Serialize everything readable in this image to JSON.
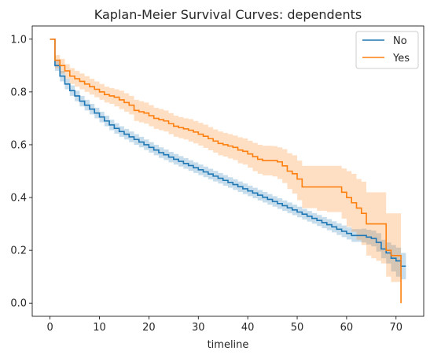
{
  "chart_data": {
    "type": "line",
    "step": true,
    "title": "Kaplan-Meier Survival Curves: dependents",
    "xlabel": "timeline",
    "ylabel": "",
    "xlim": [
      -3.6,
      75.6
    ],
    "ylim": [
      -0.05,
      1.05
    ],
    "xticks": [
      0,
      10,
      20,
      30,
      40,
      50,
      60,
      70
    ],
    "yticks": [
      0.0,
      0.2,
      0.4,
      0.6,
      0.8,
      1.0
    ],
    "xtick_labels": [
      "0",
      "10",
      "20",
      "30",
      "40",
      "50",
      "60",
      "70"
    ],
    "ytick_labels": [
      "0.0",
      "0.2",
      "0.4",
      "0.6",
      "0.8",
      "1.0"
    ],
    "legend_position": "top-right",
    "grid": false,
    "series": [
      {
        "name": "No",
        "color": "#1f77b4",
        "x": [
          0,
          1,
          2,
          3,
          4,
          5,
          6,
          7,
          8,
          9,
          10,
          11,
          12,
          13,
          14,
          15,
          16,
          17,
          18,
          19,
          20,
          21,
          22,
          23,
          24,
          25,
          26,
          27,
          28,
          29,
          30,
          31,
          32,
          33,
          34,
          35,
          36,
          37,
          38,
          39,
          40,
          41,
          42,
          43,
          44,
          45,
          46,
          47,
          48,
          49,
          50,
          51,
          52,
          53,
          54,
          55,
          56,
          57,
          58,
          59,
          60,
          61,
          62,
          63,
          64,
          65,
          66,
          67,
          68,
          69,
          70,
          71,
          72
        ],
        "y": [
          1.0,
          0.9,
          0.86,
          0.83,
          0.805,
          0.785,
          0.765,
          0.75,
          0.735,
          0.72,
          0.705,
          0.69,
          0.675,
          0.662,
          0.65,
          0.64,
          0.63,
          0.62,
          0.61,
          0.6,
          0.59,
          0.58,
          0.57,
          0.562,
          0.553,
          0.545,
          0.537,
          0.529,
          0.521,
          0.513,
          0.505,
          0.497,
          0.489,
          0.481,
          0.473,
          0.465,
          0.457,
          0.449,
          0.441,
          0.433,
          0.425,
          0.417,
          0.409,
          0.401,
          0.393,
          0.385,
          0.377,
          0.369,
          0.361,
          0.353,
          0.345,
          0.337,
          0.329,
          0.321,
          0.313,
          0.305,
          0.297,
          0.289,
          0.28,
          0.272,
          0.264,
          0.256,
          0.256,
          0.256,
          0.25,
          0.245,
          0.23,
          0.205,
          0.19,
          0.17,
          0.16,
          0.14,
          0.14
        ],
        "ci_lower": [
          1.0,
          0.88,
          0.84,
          0.81,
          0.785,
          0.765,
          0.745,
          0.73,
          0.715,
          0.7,
          0.685,
          0.67,
          0.655,
          0.642,
          0.63,
          0.62,
          0.61,
          0.6,
          0.59,
          0.58,
          0.57,
          0.56,
          0.55,
          0.542,
          0.533,
          0.525,
          0.517,
          0.509,
          0.501,
          0.493,
          0.485,
          0.477,
          0.469,
          0.461,
          0.453,
          0.445,
          0.437,
          0.429,
          0.421,
          0.413,
          0.405,
          0.397,
          0.389,
          0.381,
          0.373,
          0.365,
          0.357,
          0.349,
          0.341,
          0.333,
          0.325,
          0.317,
          0.309,
          0.301,
          0.292,
          0.284,
          0.276,
          0.268,
          0.258,
          0.25,
          0.241,
          0.232,
          0.232,
          0.23,
          0.222,
          0.215,
          0.195,
          0.17,
          0.15,
          0.12,
          0.1,
          0.09,
          0.09
        ],
        "ci_upper": [
          1.0,
          0.92,
          0.88,
          0.85,
          0.825,
          0.805,
          0.785,
          0.77,
          0.755,
          0.74,
          0.725,
          0.71,
          0.695,
          0.682,
          0.67,
          0.66,
          0.65,
          0.64,
          0.63,
          0.62,
          0.61,
          0.6,
          0.59,
          0.582,
          0.573,
          0.565,
          0.557,
          0.549,
          0.541,
          0.533,
          0.525,
          0.517,
          0.509,
          0.501,
          0.493,
          0.485,
          0.477,
          0.469,
          0.461,
          0.453,
          0.445,
          0.437,
          0.429,
          0.421,
          0.413,
          0.405,
          0.397,
          0.389,
          0.381,
          0.373,
          0.365,
          0.357,
          0.349,
          0.341,
          0.334,
          0.326,
          0.318,
          0.31,
          0.302,
          0.294,
          0.287,
          0.28,
          0.28,
          0.282,
          0.278,
          0.275,
          0.265,
          0.24,
          0.23,
          0.22,
          0.21,
          0.19,
          0.19
        ]
      },
      {
        "name": "Yes",
        "color": "#ff7f0e",
        "x": [
          0,
          1,
          2,
          3,
          4,
          5,
          6,
          7,
          8,
          9,
          10,
          11,
          12,
          13,
          14,
          15,
          16,
          17,
          18,
          19,
          20,
          21,
          22,
          23,
          24,
          25,
          26,
          27,
          28,
          29,
          30,
          31,
          32,
          33,
          34,
          35,
          36,
          37,
          38,
          39,
          40,
          41,
          42,
          43,
          44,
          45,
          46,
          47,
          48,
          49,
          50,
          51,
          52,
          53,
          54,
          55,
          56,
          57,
          58,
          59,
          60,
          61,
          62,
          63,
          64,
          65,
          66,
          67,
          68,
          69,
          70,
          71
        ],
        "y": [
          1.0,
          0.92,
          0.9,
          0.88,
          0.86,
          0.85,
          0.84,
          0.83,
          0.82,
          0.81,
          0.8,
          0.79,
          0.785,
          0.78,
          0.77,
          0.76,
          0.75,
          0.73,
          0.725,
          0.72,
          0.71,
          0.7,
          0.695,
          0.69,
          0.68,
          0.67,
          0.665,
          0.66,
          0.655,
          0.648,
          0.64,
          0.632,
          0.623,
          0.614,
          0.605,
          0.6,
          0.595,
          0.59,
          0.58,
          0.575,
          0.565,
          0.555,
          0.545,
          0.54,
          0.54,
          0.54,
          0.535,
          0.52,
          0.5,
          0.49,
          0.47,
          0.44,
          0.44,
          0.44,
          0.44,
          0.44,
          0.44,
          0.44,
          0.44,
          0.42,
          0.4,
          0.38,
          0.36,
          0.34,
          0.3,
          0.3,
          0.3,
          0.3,
          0.2,
          0.18,
          0.18,
          0.0
        ],
        "ci_lower": [
          1.0,
          0.89,
          0.87,
          0.85,
          0.83,
          0.82,
          0.81,
          0.8,
          0.79,
          0.78,
          0.77,
          0.76,
          0.755,
          0.745,
          0.735,
          0.725,
          0.715,
          0.69,
          0.685,
          0.68,
          0.67,
          0.66,
          0.655,
          0.65,
          0.64,
          0.63,
          0.625,
          0.62,
          0.612,
          0.605,
          0.597,
          0.588,
          0.579,
          0.57,
          0.56,
          0.555,
          0.548,
          0.542,
          0.53,
          0.525,
          0.513,
          0.5,
          0.49,
          0.484,
          0.484,
          0.48,
          0.47,
          0.455,
          0.432,
          0.415,
          0.39,
          0.36,
          0.36,
          0.36,
          0.35,
          0.35,
          0.345,
          0.345,
          0.345,
          0.32,
          0.29,
          0.27,
          0.24,
          0.22,
          0.18,
          0.17,
          0.16,
          0.15,
          0.1,
          0.08,
          0.08,
          0.0
        ],
        "ci_upper": [
          1.0,
          0.94,
          0.925,
          0.905,
          0.89,
          0.88,
          0.87,
          0.86,
          0.85,
          0.84,
          0.83,
          0.82,
          0.815,
          0.81,
          0.805,
          0.795,
          0.785,
          0.77,
          0.765,
          0.76,
          0.75,
          0.74,
          0.735,
          0.73,
          0.72,
          0.71,
          0.705,
          0.7,
          0.697,
          0.69,
          0.683,
          0.676,
          0.667,
          0.658,
          0.65,
          0.645,
          0.64,
          0.635,
          0.628,
          0.624,
          0.615,
          0.607,
          0.6,
          0.596,
          0.596,
          0.595,
          0.59,
          0.583,
          0.568,
          0.56,
          0.54,
          0.52,
          0.52,
          0.52,
          0.52,
          0.52,
          0.52,
          0.52,
          0.52,
          0.51,
          0.5,
          0.49,
          0.47,
          0.46,
          0.42,
          0.42,
          0.42,
          0.42,
          0.34,
          0.34,
          0.34,
          0.0
        ]
      }
    ]
  }
}
